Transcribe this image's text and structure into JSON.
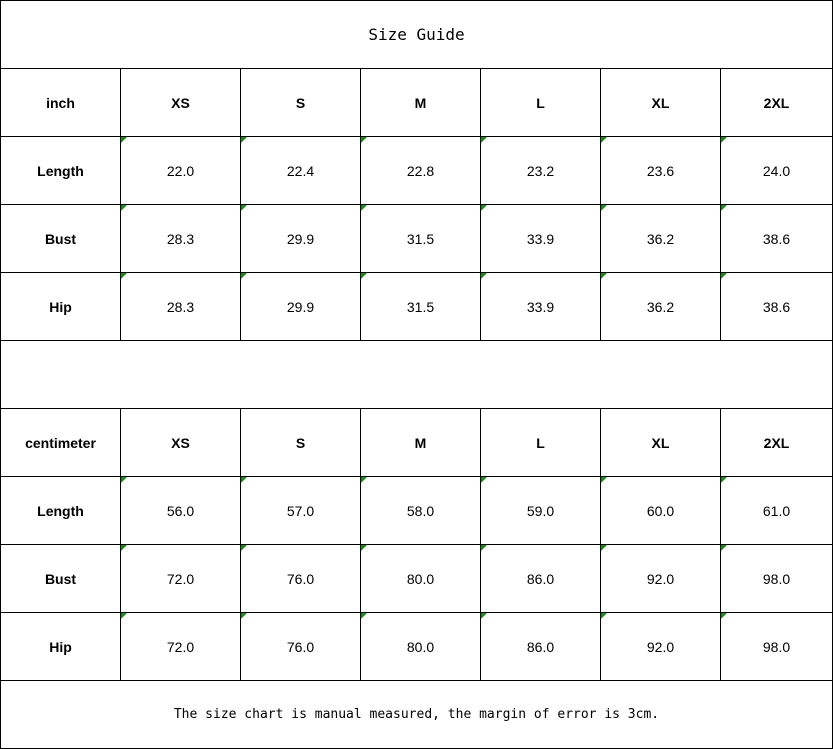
{
  "title": "Size Guide",
  "tables": [
    {
      "unit": "inch",
      "sizes": [
        "XS",
        "S",
        "M",
        "L",
        "XL",
        "2XL"
      ],
      "rows": [
        {
          "label": "Length",
          "values": [
            "22.0",
            "22.4",
            "22.8",
            "23.2",
            "23.6",
            "24.0"
          ]
        },
        {
          "label": "Bust",
          "values": [
            "28.3",
            "29.9",
            "31.5",
            "33.9",
            "36.2",
            "38.6"
          ]
        },
        {
          "label": "Hip",
          "values": [
            "28.3",
            "29.9",
            "31.5",
            "33.9",
            "36.2",
            "38.6"
          ]
        }
      ]
    },
    {
      "unit": "centimeter",
      "sizes": [
        "XS",
        "S",
        "M",
        "L",
        "XL",
        "2XL"
      ],
      "rows": [
        {
          "label": "Length",
          "values": [
            "56.0",
            "57.0",
            "58.0",
            "59.0",
            "60.0",
            "61.0"
          ]
        },
        {
          "label": "Bust",
          "values": [
            "72.0",
            "76.0",
            "80.0",
            "86.0",
            "92.0",
            "98.0"
          ]
        },
        {
          "label": "Hip",
          "values": [
            "72.0",
            "76.0",
            "80.0",
            "86.0",
            "92.0",
            "98.0"
          ]
        }
      ]
    }
  ],
  "note": "The size chart is manual measured, the margin of error is 3cm.",
  "colors": {
    "text_indicator": "#1a8a1a",
    "grid": "#000000"
  }
}
